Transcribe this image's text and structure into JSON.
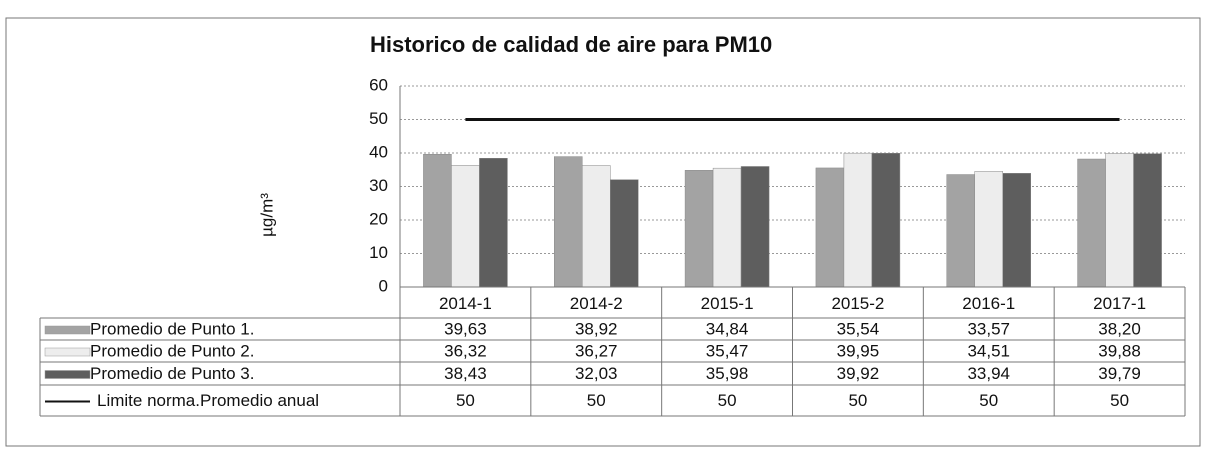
{
  "chart_data": {
    "type": "bar",
    "title": "Historico de calidad de aire para PM10",
    "y_label": "µg/m³",
    "categories": [
      "2014-1",
      "2014-2",
      "2015-1",
      "2015-2",
      "2016-1",
      "2017-1"
    ],
    "series": [
      {
        "name": "Promedio de Punto 1.",
        "color": "#a3a3a3",
        "values": [
          39.63,
          38.92,
          34.84,
          35.54,
          33.57,
          38.2
        ],
        "value_labels": [
          "39,63",
          "38,92",
          "34,84",
          "35,54",
          "33,57",
          "38,20"
        ]
      },
      {
        "name": "Promedio de Punto 2.",
        "color": "#ededed",
        "values": [
          36.32,
          36.27,
          35.47,
          39.95,
          34.51,
          39.88
        ],
        "value_labels": [
          "36,32",
          "36,27",
          "35,47",
          "39,95",
          "34,51",
          "39,88"
        ]
      },
      {
        "name": "Promedio de Punto 3.",
        "color": "#5e5e5e",
        "values": [
          38.43,
          32.03,
          35.98,
          39.92,
          33.94,
          39.79
        ],
        "value_labels": [
          "38,43",
          "32,03",
          "35,98",
          "39,92",
          "33,94",
          "39,79"
        ]
      },
      {
        "name": "Limite norma.Promedio anual",
        "color": "#111111",
        "type": "line",
        "values": [
          50,
          50,
          50,
          50,
          50,
          50
        ]
      }
    ],
    "ylim": [
      0,
      60
    ],
    "yticks": [
      0,
      10,
      20,
      30,
      40,
      50,
      60
    ],
    "grid": true
  }
}
